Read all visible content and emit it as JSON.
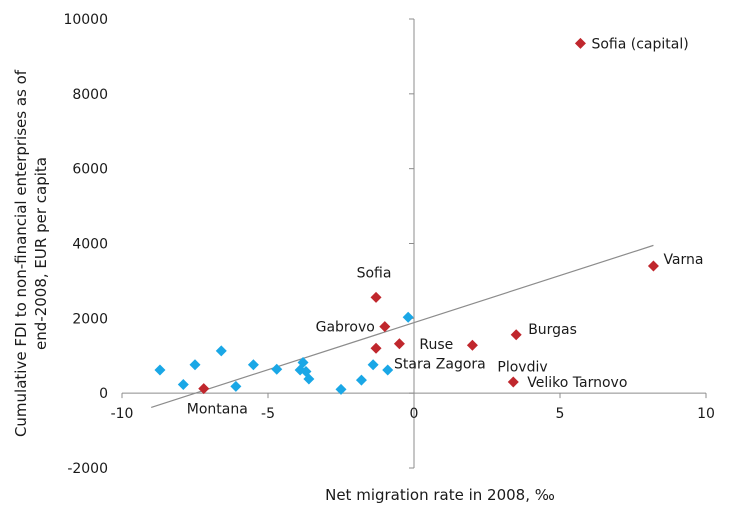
{
  "chart_data": {
    "type": "scatter",
    "xlabel": "Net migration rate in 2008, ‰",
    "ylabel": [
      "Cumulative FDI to non-financial enterprises as of",
      "end-2008, EUR per capita"
    ],
    "xlim": [
      -10,
      10
    ],
    "ylim": [
      -2000,
      10000
    ],
    "x_ticks": [
      -10,
      -5,
      0,
      5,
      10
    ],
    "y_ticks": [
      -2000,
      0,
      2000,
      4000,
      6000,
      8000,
      10000
    ],
    "grid": false,
    "legend": "none",
    "series": [
      {
        "marker": "diamond",
        "color": "#1aa7e6",
        "points": [
          {
            "x": -8.7,
            "y": 620
          },
          {
            "x": -7.9,
            "y": 230
          },
          {
            "x": -7.5,
            "y": 760
          },
          {
            "x": -6.6,
            "y": 1130
          },
          {
            "x": -6.1,
            "y": 180
          },
          {
            "x": -5.5,
            "y": 760
          },
          {
            "x": -4.7,
            "y": 640
          },
          {
            "x": -3.8,
            "y": 820
          },
          {
            "x": -3.9,
            "y": 620
          },
          {
            "x": -3.7,
            "y": 580
          },
          {
            "x": -3.6,
            "y": 380
          },
          {
            "x": -2.5,
            "y": 100
          },
          {
            "x": -1.8,
            "y": 350
          },
          {
            "x": -1.4,
            "y": 760
          },
          {
            "x": -0.9,
            "y": 620
          },
          {
            "x": -0.2,
            "y": 2030
          }
        ]
      },
      {
        "marker": "diamond",
        "color": "#c0272d",
        "points": [
          {
            "x": -7.2,
            "y": 120,
            "label": "Montana"
          },
          {
            "x": -1.3,
            "y": 2560,
            "label": "Sofia"
          },
          {
            "x": -1.0,
            "y": 1780,
            "label": "Gabrovo"
          },
          {
            "x": -1.3,
            "y": 1200,
            "label": "Stara Zagora"
          },
          {
            "x": -0.5,
            "y": 1320,
            "label": "Ruse"
          },
          {
            "x": 2.0,
            "y": 1280,
            "label": "Plovdiv"
          },
          {
            "x": 3.5,
            "y": 1560,
            "label": "Burgas"
          },
          {
            "x": 3.4,
            "y": 300,
            "label": "Veliko Tarnovo"
          },
          {
            "x": 8.2,
            "y": 3400,
            "label": "Varna"
          },
          {
            "x": 5.7,
            "y": 9350,
            "label": "Sofia (capital)"
          }
        ]
      }
    ],
    "trendline": {
      "type": "linear",
      "from": {
        "x": -9.0,
        "y": -380
      },
      "to": {
        "x": 8.2,
        "y": 3950
      }
    }
  }
}
